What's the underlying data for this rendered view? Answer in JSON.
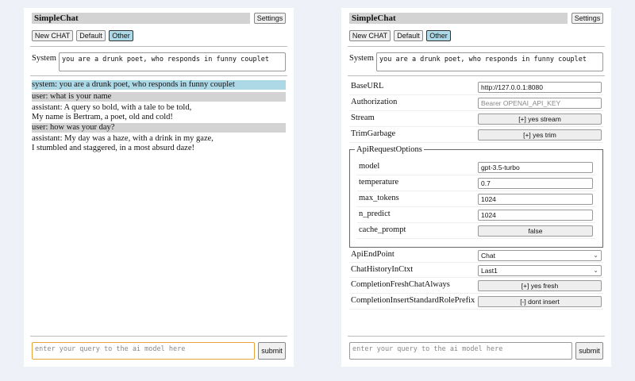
{
  "left": {
    "title": "SimpleChat",
    "settings_label": "Settings",
    "buttons": [
      "New CHAT",
      "Default",
      "Other"
    ],
    "system_label": "System",
    "system_value": "you are a drunk poet, who responds in funny couplet",
    "messages": [
      {
        "role": "system",
        "lines": [
          "system: you are a drunk poet, who responds in funny couplet"
        ]
      },
      {
        "role": "user",
        "lines": [
          "user: what is your name"
        ]
      },
      {
        "role": "assistant",
        "lines": [
          "assistant: A query so bold, with a tale to be told,",
          "My name is Bertram, a poet, old and cold!"
        ]
      },
      {
        "role": "user",
        "lines": [
          "user: how was your day?"
        ]
      },
      {
        "role": "assistant",
        "lines": [
          "assistant: My day was a haze, with a drink in my gaze,",
          "I stumbled and staggered, in a most absurd daze!"
        ]
      }
    ],
    "input_placeholder": "enter your query to the ai model here",
    "submit_label": "submit"
  },
  "right": {
    "title": "SimpleChat",
    "settings_label": "Settings",
    "buttons": [
      "New CHAT",
      "Default",
      "Other"
    ],
    "system_label": "System",
    "system_value": "you are a drunk poet, who responds in funny couplet",
    "settings": {
      "baseurl": {
        "label": "BaseURL",
        "value": "http://127.0.0.1:8080"
      },
      "authorization": {
        "label": "Authorization",
        "placeholder": "Bearer OPENAI_API_KEY"
      },
      "stream": {
        "label": "Stream",
        "value": "[+] yes stream"
      },
      "trimgarbage": {
        "label": "TrimGarbage",
        "value": "[+] yes trim"
      },
      "api_options_legend": "ApiRequestOptions",
      "model": {
        "label": "model",
        "value": "gpt-3.5-turbo"
      },
      "temperature": {
        "label": "temperature",
        "value": "0.7"
      },
      "max_tokens": {
        "label": "max_tokens",
        "value": "1024"
      },
      "n_predict": {
        "label": "n_predict",
        "value": "1024"
      },
      "cache_prompt": {
        "label": "cache_prompt",
        "value": "false"
      },
      "apiendpoint": {
        "label": "ApiEndPoint",
        "value": "Chat"
      },
      "chathistory": {
        "label": "ChatHistoryInCtxt",
        "value": "Last1"
      },
      "freshchat": {
        "label": "CompletionFreshChatAlways",
        "value": "[+] yes fresh"
      },
      "insertprefix": {
        "label": "CompletionInsertStandardRolePrefix",
        "value": "[-] dont insert"
      }
    },
    "input_placeholder": "enter your query to the ai model here",
    "submit_label": "submit"
  },
  "colors": {
    "system_msg": "#add8e6",
    "user_msg": "#d3d3d3",
    "focus": "#e8a33d"
  }
}
